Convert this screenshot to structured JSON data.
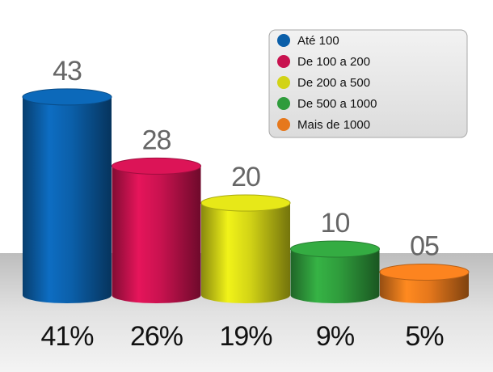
{
  "chart_data": {
    "type": "bar",
    "categories": [
      "Até 100",
      "De 100 a 200",
      "De 200 a 500",
      "De 500 a 1000",
      "Mais de 1000"
    ],
    "values": [
      43,
      28,
      20,
      10,
      5
    ],
    "value_labels": [
      "43",
      "28",
      "20",
      "10",
      "05"
    ],
    "colors": [
      "#0b5fa9",
      "#c8124f",
      "#d2d316",
      "#2f9c3c",
      "#e6781c"
    ],
    "percent_values": [
      41,
      26,
      19,
      9,
      5
    ],
    "percent_labels": [
      "41%",
      "26%",
      "19%",
      "9%",
      "5%"
    ],
    "legend": "top-right"
  }
}
